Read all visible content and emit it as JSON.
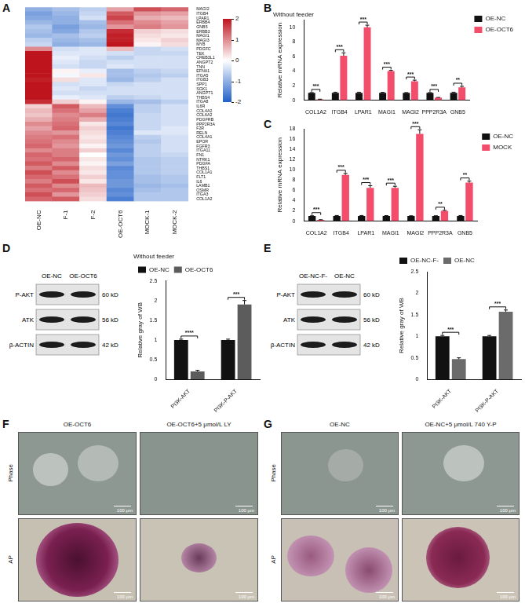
{
  "chart_data": [
    {
      "panel": "A",
      "type": "heatmap",
      "columns": [
        "OE-NC",
        "F-1",
        "F-2",
        "OE-OCT6",
        "MOCK-1",
        "MOCK-2"
      ],
      "rows": [
        "MAGI2",
        "ITGB4",
        "LPAR1",
        "ERBB4",
        "GNB5",
        "ERBB3",
        "MAGI1",
        "MAGI3",
        "MYB",
        "PDGFC",
        "TEK",
        "CREB3L1",
        "ANGPT2",
        "TNN",
        "EFNA1",
        "ITGA5",
        "ITGB3",
        "SPP1",
        "SGK1",
        "ANGPT1",
        "THBS4",
        "ITGA8",
        "IL6R",
        "COL4A2",
        "COL6A2",
        "PDGFRB",
        "PPP2R3A",
        "F2R",
        "RELN",
        "COL4A1",
        "EPOR",
        "FGFR3",
        "ITGA11",
        "FN1",
        "NTRK1",
        "PDGFA",
        "THBS1",
        "COL1A1",
        "FLT1",
        "IL6",
        "LAMB1",
        "OSMR",
        "ITGA3",
        "COL1A2"
      ],
      "cells": [
        [
          -1.0,
          -0.8,
          -0.6,
          0.8,
          1.5,
          1.3
        ],
        [
          -1.2,
          -0.9,
          -0.5,
          1.4,
          0.9,
          0.8
        ],
        [
          -1.1,
          -1.0,
          -0.4,
          1.6,
          0.7,
          0.6
        ],
        [
          -0.9,
          -1.0,
          -0.8,
          1.2,
          1.0,
          0.8
        ],
        [
          -0.7,
          -1.2,
          -0.9,
          0.9,
          1.1,
          0.9
        ],
        [
          -0.8,
          -1.1,
          -0.7,
          1.8,
          0.4,
          0.3
        ],
        [
          -0.9,
          -0.8,
          -0.6,
          1.9,
          0.3,
          0.2
        ],
        [
          -0.6,
          -0.9,
          -0.8,
          1.9,
          0.2,
          0.4
        ],
        [
          -0.5,
          -1.0,
          -0.9,
          2.0,
          0.1,
          0.3
        ],
        [
          1.0,
          -0.4,
          -0.3,
          0.6,
          -0.5,
          -0.4
        ],
        [
          2.0,
          -0.3,
          -0.3,
          -0.4,
          -0.5,
          -0.5
        ],
        [
          2.0,
          -0.2,
          -0.4,
          -0.6,
          -0.4,
          -0.4
        ],
        [
          2.0,
          -0.3,
          -0.5,
          -0.4,
          -0.4,
          -0.4
        ],
        [
          2.0,
          -0.4,
          -0.5,
          -0.3,
          -0.4,
          -0.4
        ],
        [
          2.0,
          0.1,
          -0.2,
          -0.8,
          -0.6,
          -0.5
        ],
        [
          2.0,
          -0.1,
          0.2,
          -0.8,
          -0.7,
          -0.6
        ],
        [
          1.9,
          0.3,
          -0.3,
          -0.9,
          -0.6,
          -0.4
        ],
        [
          2.0,
          -0.4,
          -0.3,
          -0.5,
          -0.4,
          -0.4
        ],
        [
          2.0,
          -0.3,
          -0.5,
          -0.4,
          -0.4,
          -0.4
        ],
        [
          2.0,
          -0.4,
          -0.4,
          -0.4,
          -0.4,
          -0.4
        ],
        [
          2.0,
          -0.2,
          -0.3,
          -0.6,
          -0.5,
          -0.4
        ],
        [
          1.8,
          0.4,
          0.1,
          -0.9,
          -0.8,
          -0.6
        ],
        [
          0.4,
          1.4,
          0.6,
          -1.4,
          -0.6,
          -0.4
        ],
        [
          0.6,
          1.2,
          0.8,
          -1.6,
          -0.6,
          -0.4
        ],
        [
          0.5,
          1.0,
          1.1,
          -1.7,
          -0.5,
          -0.4
        ],
        [
          0.7,
          1.1,
          0.7,
          -1.6,
          -0.5,
          -0.4
        ],
        [
          1.0,
          1.2,
          0.2,
          -1.5,
          -0.5,
          -0.4
        ],
        [
          0.8,
          1.3,
          0.4,
          -1.7,
          -0.5,
          -0.3
        ],
        [
          1.0,
          0.9,
          0.3,
          -1.6,
          -0.3,
          -0.3
        ],
        [
          1.1,
          1.2,
          0.2,
          -1.5,
          -0.6,
          -0.4
        ],
        [
          1.2,
          1.0,
          0.3,
          -1.4,
          -0.7,
          -0.4
        ],
        [
          1.3,
          0.9,
          0.1,
          -1.3,
          -0.6,
          -0.4
        ],
        [
          1.0,
          1.1,
          0.4,
          -1.5,
          -0.6,
          -0.4
        ],
        [
          1.3,
          1.1,
          0.0,
          -1.3,
          -0.6,
          -0.5
        ],
        [
          1.2,
          1.3,
          0.2,
          -1.4,
          -0.7,
          -0.6
        ],
        [
          1.4,
          1.0,
          0.1,
          -1.2,
          -0.7,
          -0.6
        ],
        [
          1.1,
          1.4,
          0.3,
          -1.5,
          -0.7,
          -0.6
        ],
        [
          1.5,
          1.0,
          0.2,
          -1.4,
          -0.7,
          -0.6
        ],
        [
          1.3,
          1.2,
          0.4,
          -1.4,
          -0.8,
          -0.7
        ],
        [
          1.1,
          1.5,
          0.2,
          -1.3,
          -0.8,
          -0.7
        ],
        [
          1.4,
          1.0,
          0.6,
          -1.3,
          -0.9,
          -0.8
        ],
        [
          1.2,
          1.3,
          0.5,
          -1.5,
          -0.8,
          -0.7
        ],
        [
          1.5,
          0.9,
          0.4,
          -1.4,
          -0.7,
          -0.7
        ],
        [
          1.3,
          1.4,
          0.3,
          -1.6,
          -0.7,
          -0.7
        ]
      ],
      "colorbar": {
        "range": [
          -2,
          2
        ],
        "ticks": [
          2,
          1,
          0,
          -1,
          -2
        ]
      }
    },
    {
      "panel": "B",
      "type": "bar",
      "title": "Without feeder",
      "ylabel": "Relative mRNA expression",
      "categories": [
        "COL1A2",
        "ITGB4",
        "LPAR1",
        "MAGI1",
        "MAGI2",
        "PPP2R3A",
        "GNB5"
      ],
      "series": [
        {
          "name": "OE-NC",
          "color": "#111111",
          "values": [
            1,
            1,
            1,
            1,
            1,
            1,
            1
          ],
          "errors": [
            0.05,
            0.1,
            0.1,
            0.08,
            0.05,
            0.05,
            0.1
          ]
        },
        {
          "name": "OE-OCT6",
          "color": "#f24d6b",
          "values": [
            0.12,
            6.1,
            10.0,
            4.0,
            2.6,
            0.35,
            1.75
          ],
          "errors": [
            0.02,
            0.4,
            0.3,
            0.1,
            0.15,
            0.03,
            0.15
          ]
        }
      ],
      "significance": [
        "***",
        "***",
        "***",
        "***",
        "***",
        "***",
        "**"
      ],
      "ylim": [
        0,
        11
      ],
      "yticks": [
        0,
        2,
        4,
        6,
        8,
        10
      ],
      "grid": false,
      "legend": "right"
    },
    {
      "panel": "C",
      "type": "bar",
      "ylabel": "Relative mRNA expression",
      "categories": [
        "COL1A2",
        "ITGB4",
        "LPAR1",
        "MAGI1",
        "MAGI2",
        "PPP2R3A",
        "GNB5"
      ],
      "series": [
        {
          "name": "OE-NC",
          "color": "#111111",
          "values": [
            1,
            1,
            1,
            1,
            1,
            1,
            1
          ],
          "errors": [
            0.05,
            0.1,
            0.1,
            0.08,
            0.05,
            0.05,
            0.1
          ]
        },
        {
          "name": "MOCK",
          "color": "#f24d6b",
          "values": [
            0.25,
            9.0,
            6.5,
            6.5,
            17.0,
            2.0,
            7.5
          ],
          "errors": [
            0.03,
            0.3,
            0.4,
            0.3,
            0.8,
            0.1,
            0.3
          ]
        }
      ],
      "significance": [
        "***",
        "***",
        "***",
        "***",
        "***",
        "**",
        "**"
      ],
      "ylim": [
        0,
        18
      ],
      "yticks": [
        0,
        2,
        4,
        6,
        8,
        10,
        12,
        14,
        16,
        18
      ],
      "grid": false,
      "legend": "right"
    },
    {
      "panel": "D",
      "type": "bar",
      "title": "Without feeder",
      "ylabel": "Relative gray of WB",
      "categories": [
        "PI3K-AKT",
        "PI3K-P-AKT"
      ],
      "series": [
        {
          "name": "OE-NC",
          "color": "#111111",
          "values": [
            1,
            1
          ],
          "errors": [
            0.02,
            0.02
          ]
        },
        {
          "name": "OE-OCT6",
          "color": "#5c5c5c",
          "values": [
            0.2,
            1.9
          ],
          "errors": [
            0.03,
            0.1
          ]
        }
      ],
      "significance": [
        "****",
        "***"
      ],
      "ylim": [
        0,
        2.5
      ],
      "yticks": [
        0,
        0.5,
        1,
        1.5,
        2,
        2.5
      ],
      "grid": false,
      "legend": "top"
    },
    {
      "panel": "E",
      "type": "bar",
      "ylabel": "Relative gray of WB",
      "categories": [
        "PI3K-AKT",
        "PI3K-P-AKT"
      ],
      "series": [
        {
          "name": "OE-NC-F-",
          "color": "#111111",
          "values": [
            1,
            1
          ],
          "errors": [
            0.02,
            0.02
          ]
        },
        {
          "name": "OE-NC",
          "color": "#6b6b6b",
          "values": [
            0.47,
            1.57
          ],
          "errors": [
            0.03,
            0.04
          ]
        }
      ],
      "significance": [
        "***",
        "***"
      ],
      "ylim": [
        0,
        2.5
      ],
      "yticks": [
        0,
        0.5,
        1,
        1.5,
        2,
        2.5
      ],
      "grid": false,
      "legend": "top"
    }
  ],
  "blots": [
    {
      "lanes": [
        "OE-NC",
        "OE-OCT6"
      ],
      "rows": [
        {
          "label": "P-AKT",
          "size": "60 kD"
        },
        {
          "label": "ATK",
          "size": "56 kD"
        },
        {
          "label": "β-ACTIN",
          "size": "42 kD"
        }
      ]
    },
    {
      "lanes": [
        "OE-NC-F-",
        "OE-NC"
      ],
      "rows": [
        {
          "label": "P-AKT",
          "size": "60 kD"
        },
        {
          "label": "ATK",
          "size": "56 kD"
        },
        {
          "label": "β-ACTIN",
          "size": "42 kD"
        }
      ]
    }
  ],
  "images": [
    {
      "panel": "F",
      "columns": [
        "OE-OCT6",
        "OE-OCT6+5 μmol/L LY"
      ],
      "rows": [
        "Phase",
        "AP"
      ],
      "scale_bar": "100 μm"
    },
    {
      "panel": "G",
      "columns": [
        "OE-NC",
        "OE-NC+5 μmol/L 740 Y-P"
      ],
      "rows": [
        "Phase",
        "AP"
      ],
      "scale_bar": "100 μm"
    }
  ]
}
